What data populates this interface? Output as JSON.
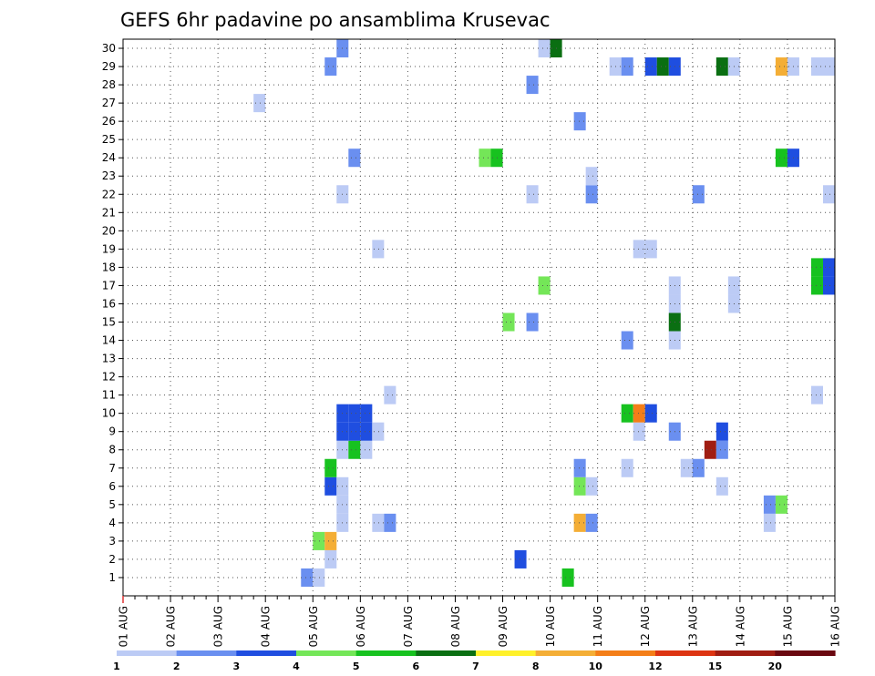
{
  "chart_data": {
    "type": "heatmap",
    "title": "GEFS 6hr padavine po ansamblima Krusevac",
    "x_tick_labels": [
      "01 AUG",
      "02 AUG",
      "03 AUG",
      "04 AUG",
      "05 AUG",
      "06 AUG",
      "07 AUG",
      "08 AUG",
      "09 AUG",
      "10 AUG",
      "11 AUG",
      "12 AUG",
      "13 AUG",
      "14 AUG",
      "15 AUG",
      "16 AUG"
    ],
    "x_range_days": [
      0,
      15
    ],
    "step_hours": 6,
    "ensemble_members": [
      1,
      2,
      3,
      4,
      5,
      6,
      7,
      8,
      9,
      10,
      11,
      12,
      13,
      14,
      15,
      16,
      17,
      18,
      19,
      20,
      21,
      22,
      23,
      24,
      25,
      26,
      27,
      28,
      29,
      30
    ],
    "grid": true,
    "legend_placement": "bottom",
    "legend": {
      "colors": [
        "#bccbf5",
        "#6a8ff0",
        "#1f4ee0",
        "#74e658",
        "#17c21f",
        "#0a6f12",
        "#fff12a",
        "#f4ae36",
        "#f47e18",
        "#dd3412",
        "#a01d12",
        "#6a0810"
      ],
      "labels": [
        "1",
        "2",
        "3",
        "4",
        "5",
        "6",
        "7",
        "8",
        "10",
        "12",
        "15",
        "20"
      ]
    },
    "cells": [
      {
        "member": 1,
        "step": 16,
        "level": 2
      },
      {
        "member": 1,
        "step": 17,
        "level": 1
      },
      {
        "member": 1,
        "step": 38,
        "level": 5
      },
      {
        "member": 2,
        "step": 18,
        "level": 1
      },
      {
        "member": 2,
        "step": 34,
        "level": 3
      },
      {
        "member": 3,
        "step": 17,
        "level": 4
      },
      {
        "member": 3,
        "step": 18,
        "level": 8
      },
      {
        "member": 4,
        "step": 19,
        "level": 1
      },
      {
        "member": 4,
        "step": 22,
        "level": 1
      },
      {
        "member": 4,
        "step": 23,
        "level": 2
      },
      {
        "member": 4,
        "step": 39,
        "level": 8
      },
      {
        "member": 4,
        "step": 40,
        "level": 2
      },
      {
        "member": 4,
        "step": 55,
        "level": 1
      },
      {
        "member": 5,
        "step": 19,
        "level": 1
      },
      {
        "member": 5,
        "step": 55,
        "level": 2
      },
      {
        "member": 5,
        "step": 56,
        "level": 4
      },
      {
        "member": 6,
        "step": 18,
        "level": 3
      },
      {
        "member": 6,
        "step": 19,
        "level": 1
      },
      {
        "member": 6,
        "step": 39,
        "level": 4
      },
      {
        "member": 6,
        "step": 40,
        "level": 1
      },
      {
        "member": 6,
        "step": 51,
        "level": 1
      },
      {
        "member": 7,
        "step": 18,
        "level": 5
      },
      {
        "member": 7,
        "step": 39,
        "level": 2
      },
      {
        "member": 7,
        "step": 43,
        "level": 1
      },
      {
        "member": 7,
        "step": 48,
        "level": 1
      },
      {
        "member": 7,
        "step": 49,
        "level": 2
      },
      {
        "member": 8,
        "step": 19,
        "level": 1
      },
      {
        "member": 8,
        "step": 20,
        "level": 5
      },
      {
        "member": 8,
        "step": 21,
        "level": 1
      },
      {
        "member": 8,
        "step": 50,
        "level": 11
      },
      {
        "member": 8,
        "step": 51,
        "level": 2
      },
      {
        "member": 9,
        "step": 19,
        "level": 3
      },
      {
        "member": 9,
        "step": 20,
        "level": 3
      },
      {
        "member": 9,
        "step": 21,
        "level": 3
      },
      {
        "member": 9,
        "step": 22,
        "level": 1
      },
      {
        "member": 9,
        "step": 44,
        "level": 1
      },
      {
        "member": 9,
        "step": 47,
        "level": 2
      },
      {
        "member": 9,
        "step": 51,
        "level": 3
      },
      {
        "member": 10,
        "step": 19,
        "level": 3
      },
      {
        "member": 10,
        "step": 20,
        "level": 3
      },
      {
        "member": 10,
        "step": 21,
        "level": 3
      },
      {
        "member": 10,
        "step": 43,
        "level": 5
      },
      {
        "member": 10,
        "step": 44,
        "level": 9
      },
      {
        "member": 10,
        "step": 45,
        "level": 3
      },
      {
        "member": 11,
        "step": 23,
        "level": 1
      },
      {
        "member": 11,
        "step": 59,
        "level": 1
      },
      {
        "member": 14,
        "step": 43,
        "level": 2
      },
      {
        "member": 14,
        "step": 47,
        "level": 1
      },
      {
        "member": 15,
        "step": 33,
        "level": 4
      },
      {
        "member": 15,
        "step": 35,
        "level": 2
      },
      {
        "member": 15,
        "step": 47,
        "level": 6
      },
      {
        "member": 16,
        "step": 47,
        "level": 1
      },
      {
        "member": 16,
        "step": 52,
        "level": 1
      },
      {
        "member": 17,
        "step": 36,
        "level": 4
      },
      {
        "member": 17,
        "step": 47,
        "level": 1
      },
      {
        "member": 17,
        "step": 52,
        "level": 1
      },
      {
        "member": 17,
        "step": 59,
        "level": 5
      },
      {
        "member": 17,
        "step": 60,
        "level": 3
      },
      {
        "member": 18,
        "step": 59,
        "level": 5
      },
      {
        "member": 18,
        "step": 60,
        "level": 3
      },
      {
        "member": 19,
        "step": 22,
        "level": 1
      },
      {
        "member": 19,
        "step": 44,
        "level": 1
      },
      {
        "member": 19,
        "step": 45,
        "level": 1
      },
      {
        "member": 22,
        "step": 19,
        "level": 1
      },
      {
        "member": 22,
        "step": 35,
        "level": 1
      },
      {
        "member": 22,
        "step": 40,
        "level": 2
      },
      {
        "member": 22,
        "step": 49,
        "level": 2
      },
      {
        "member": 22,
        "step": 60,
        "level": 1
      },
      {
        "member": 23,
        "step": 40,
        "level": 1
      },
      {
        "member": 24,
        "step": 20,
        "level": 2
      },
      {
        "member": 24,
        "step": 31,
        "level": 4
      },
      {
        "member": 24,
        "step": 32,
        "level": 5
      },
      {
        "member": 24,
        "step": 56,
        "level": 5
      },
      {
        "member": 24,
        "step": 57,
        "level": 3
      },
      {
        "member": 26,
        "step": 39,
        "level": 2
      },
      {
        "member": 27,
        "step": 12,
        "level": 1
      },
      {
        "member": 28,
        "step": 35,
        "level": 2
      },
      {
        "member": 29,
        "step": 18,
        "level": 2
      },
      {
        "member": 29,
        "step": 42,
        "level": 1
      },
      {
        "member": 29,
        "step": 43,
        "level": 2
      },
      {
        "member": 29,
        "step": 45,
        "level": 3
      },
      {
        "member": 29,
        "step": 46,
        "level": 6
      },
      {
        "member": 29,
        "step": 47,
        "level": 3
      },
      {
        "member": 29,
        "step": 51,
        "level": 6
      },
      {
        "member": 29,
        "step": 52,
        "level": 1
      },
      {
        "member": 29,
        "step": 56,
        "level": 8
      },
      {
        "member": 29,
        "step": 57,
        "level": 1
      },
      {
        "member": 29,
        "step": 59,
        "level": 1
      },
      {
        "member": 29,
        "step": 60,
        "level": 1
      },
      {
        "member": 30,
        "step": 19,
        "level": 2
      },
      {
        "member": 30,
        "step": 36,
        "level": 1
      },
      {
        "member": 30,
        "step": 37,
        "level": 6
      }
    ]
  }
}
